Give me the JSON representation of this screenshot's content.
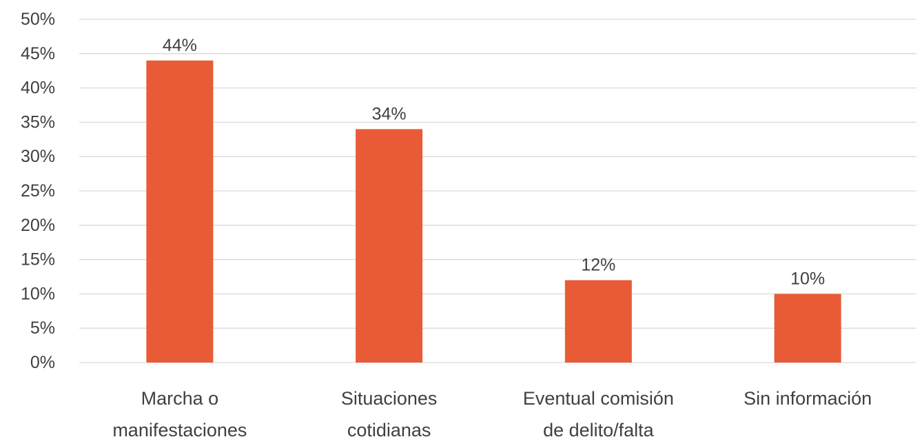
{
  "chart_data": {
    "type": "bar",
    "title": "",
    "xlabel": "",
    "ylabel": "",
    "categories": [
      [
        "Marcha o",
        "manifestaciones"
      ],
      [
        "Situaciones",
        "cotidianas"
      ],
      [
        "Eventual comisión",
        "de delito/falta"
      ],
      [
        "Sin información"
      ]
    ],
    "values": [
      44,
      34,
      12,
      10
    ],
    "data_labels": [
      "44%",
      "34%",
      "12%",
      "10%"
    ],
    "ylim": [
      0,
      50
    ],
    "yticks": [
      0,
      5,
      10,
      15,
      20,
      25,
      30,
      35,
      40,
      45,
      50
    ],
    "ytick_labels": [
      "0%",
      "5%",
      "10%",
      "15%",
      "20%",
      "25%",
      "30%",
      "35%",
      "40%",
      "45%",
      "50%"
    ],
    "grid": true,
    "legend": "none",
    "bar_color": "#e95b36",
    "grid_color": "#d9d9d9",
    "text_color": "#404040"
  }
}
